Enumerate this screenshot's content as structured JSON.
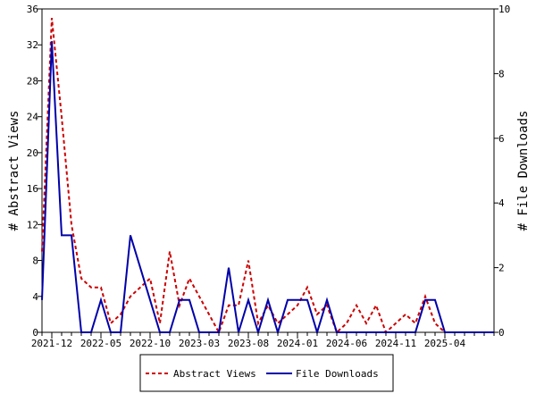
{
  "chart_data": {
    "type": "line",
    "x": [
      "2021-11",
      "2021-12",
      "2022-01",
      "2022-02",
      "2022-03",
      "2022-04",
      "2022-05",
      "2022-06",
      "2022-07",
      "2022-08",
      "2022-09",
      "2022-10",
      "2022-11",
      "2022-12",
      "2023-01",
      "2023-02",
      "2023-03",
      "2023-04",
      "2023-05",
      "2023-06",
      "2023-07",
      "2023-08",
      "2023-09",
      "2023-10",
      "2023-11",
      "2023-12",
      "2024-01",
      "2024-02",
      "2024-03",
      "2024-04",
      "2024-05",
      "2024-06",
      "2024-07",
      "2024-08",
      "2024-09",
      "2024-10",
      "2024-11",
      "2024-12",
      "2025-01",
      "2025-02",
      "2025-03",
      "2025-04",
      "2025-05",
      "2025-06",
      "2025-07",
      "2025-08",
      "2025-09"
    ],
    "x_tick_labels": [
      "2021-12",
      "2022-05",
      "2022-10",
      "2023-03",
      "2023-08",
      "2024-01",
      "2024-06",
      "2024-11",
      "2025-04"
    ],
    "y_left": {
      "label": "# Abstract Views",
      "range": [
        0,
        36
      ],
      "ticks": [
        0,
        4,
        8,
        12,
        16,
        20,
        24,
        28,
        32,
        36
      ]
    },
    "y_right": {
      "label": "# File Downloads",
      "range": [
        0,
        10
      ],
      "ticks": [
        0,
        2,
        4,
        6,
        8,
        10
      ]
    },
    "series": [
      {
        "name": "Abstract Views",
        "axis": "left",
        "color": "#cc0000",
        "dash": "dashed",
        "values": [
          9,
          35,
          24,
          12,
          6,
          5,
          5,
          1,
          2,
          4,
          5,
          6,
          1,
          9,
          3,
          6,
          4,
          2,
          0,
          3,
          3,
          8,
          1,
          3,
          1,
          2,
          3,
          5,
          2,
          3,
          0,
          1,
          3,
          1,
          3,
          0,
          1,
          2,
          1,
          4,
          1,
          0,
          0,
          0,
          0,
          0,
          0
        ]
      },
      {
        "name": "File Downloads",
        "axis": "right",
        "color": "#0000aa",
        "dash": "solid",
        "values": [
          1,
          9,
          3,
          3,
          0,
          0,
          1,
          0,
          0,
          3,
          2,
          1,
          0,
          0,
          1,
          1,
          0,
          0,
          0,
          2,
          0,
          1,
          0,
          1,
          0,
          1,
          1,
          1,
          0,
          1,
          0,
          0,
          0,
          0,
          0,
          0,
          0,
          0,
          0,
          1,
          1,
          0,
          0,
          0,
          0,
          0,
          0
        ]
      }
    ],
    "legend": {
      "placement": "bottom-center",
      "entries": [
        "Abstract Views",
        "File Downloads"
      ]
    },
    "grid": false
  }
}
